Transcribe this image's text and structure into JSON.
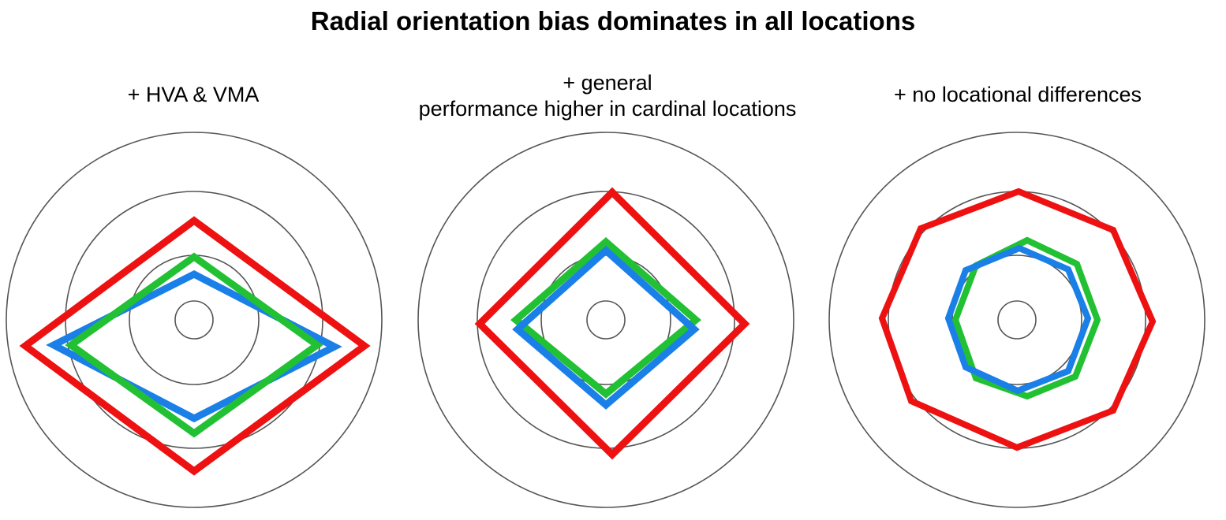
{
  "title": "Radial orientation bias dominates in all locations",
  "panels": [
    {
      "subtitle_lines": [
        "+ HVA & VMA"
      ]
    },
    {
      "subtitle_lines": [
        "+ general",
        "performance higher in cardinal locations"
      ]
    },
    {
      "subtitle_lines": [
        "+ no locational differences"
      ]
    }
  ],
  "colors": {
    "red": "#ee1111",
    "green": "#22c033",
    "blue": "#1a80e8",
    "ring": "#555555"
  }
}
